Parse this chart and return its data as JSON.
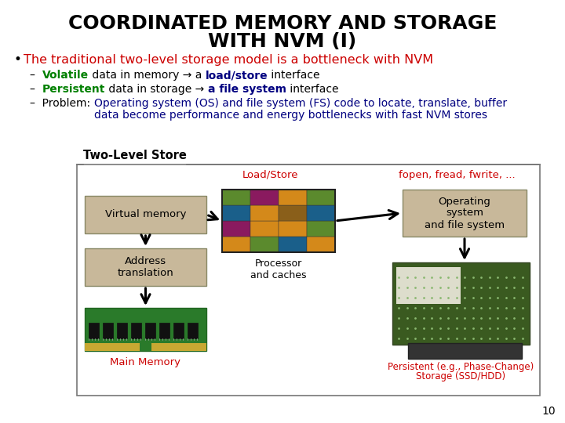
{
  "title_line1": "COORDINATED MEMORY AND STORAGE",
  "title_line2": "WITH NVM (I)",
  "title_fontsize": 18,
  "title_color": "#000000",
  "bullet_text": "The traditional two-level storage model is a bottleneck with NVM",
  "bullet_color": "#cc0000",
  "diagram_label": "Two-Level Store",
  "box_vm": "Virtual memory",
  "box_at": "Address\ntranslation",
  "box_os": "Operating\nsystem\nand file system",
  "label_ls": "Load/Store",
  "label_ff": "fopen, fread, fwrite, ...",
  "label_proc": "Processor\nand caches",
  "label_mm": "Main Memory",
  "label_ps1": "Persistent (e.g., Phase-Change)",
  "label_ps2": "Storage (SSD/HDD)",
  "box_color": "#c8b89a",
  "border_color": "#555555",
  "arrow_color": "#000000",
  "ls_color": "#cc0000",
  "ff_color": "#cc0000",
  "ps_color": "#cc0000",
  "mm_color": "#cc0000",
  "page_num": "10",
  "bg_color": "#ffffff",
  "font": "DejaVu Sans"
}
